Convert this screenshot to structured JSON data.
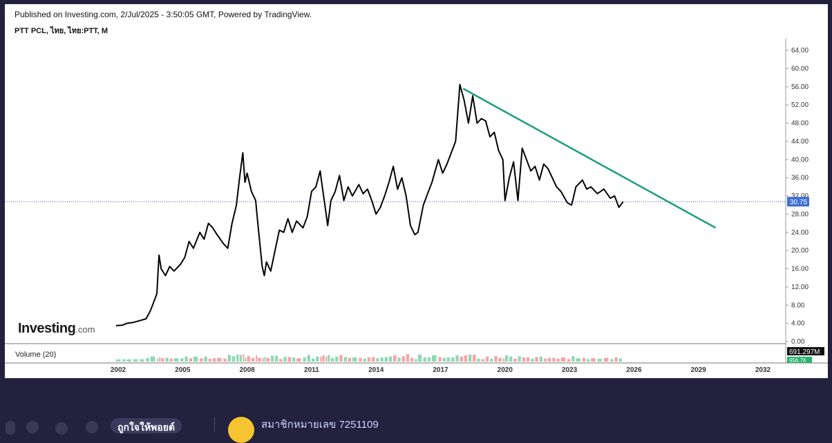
{
  "header": {
    "published": "Published on Investing.com, 2/Jul/2025 - 3:50:05 GMT, Powered by TradingView.",
    "symbol": "PTT PCL, ไทย, ไทย:PTT, M"
  },
  "logo": {
    "brand": "Investing",
    "suffix": ".com"
  },
  "volume": {
    "label": "Volume (20)",
    "value_label": "691.297M",
    "ma_label": "956.7K"
  },
  "price_label": "30.75",
  "footer": {
    "like_label": "ถูกใจให้พอยต์",
    "member_name": "สมาชิกหมายเลข 7251109"
  },
  "colors": {
    "price_line": "#000000",
    "trend_line": "#1a9e80",
    "price_badge": "#3f6fd3",
    "vol_up": "#8fd8b4",
    "vol_down": "#f4a3a3"
  },
  "chart_data": {
    "type": "line",
    "x_ticks": [
      "2002",
      "2005",
      "2008",
      "2011",
      "2014",
      "2017",
      "2020",
      "2023",
      "2026",
      "2029",
      "2032"
    ],
    "y_ticks": [
      "0.00",
      "4.00",
      "8.00",
      "12.00",
      "16.00",
      "20.00",
      "24.00",
      "28.00",
      "32.00",
      "36.00",
      "40.00",
      "44.00",
      "48.00",
      "52.00",
      "56.00",
      "60.00",
      "64.00"
    ],
    "ylim": [
      0,
      66
    ],
    "xlim": [
      2002,
      2032
    ],
    "current_price": 30.75,
    "series": [
      {
        "values": [
          [
            2001.9,
            3.5
          ],
          [
            2002.2,
            3.6
          ],
          [
            2002.4,
            4.0
          ],
          [
            2002.7,
            4.2
          ],
          [
            2003.0,
            4.6
          ],
          [
            2003.3,
            5.0
          ],
          [
            2003.5,
            6.8
          ],
          [
            2003.8,
            10.5
          ],
          [
            2003.9,
            19.0
          ],
          [
            2004.0,
            16.0
          ],
          [
            2004.2,
            14.5
          ],
          [
            2004.4,
            16.5
          ],
          [
            2004.6,
            15.5
          ],
          [
            2004.9,
            17.0
          ],
          [
            2005.1,
            18.5
          ],
          [
            2005.3,
            22.0
          ],
          [
            2005.5,
            20.5
          ],
          [
            2005.8,
            24.0
          ],
          [
            2006.0,
            22.5
          ],
          [
            2006.2,
            26.0
          ],
          [
            2006.4,
            25.0
          ],
          [
            2006.6,
            23.5
          ],
          [
            2006.9,
            21.5
          ],
          [
            2007.1,
            20.5
          ],
          [
            2007.3,
            26.0
          ],
          [
            2007.5,
            30.0
          ],
          [
            2007.65,
            36.0
          ],
          [
            2007.8,
            41.5
          ],
          [
            2007.9,
            35.0
          ],
          [
            2008.0,
            37.0
          ],
          [
            2008.2,
            33.0
          ],
          [
            2008.4,
            31.0
          ],
          [
            2008.5,
            26.0
          ],
          [
            2008.7,
            16.5
          ],
          [
            2008.8,
            14.5
          ],
          [
            2008.9,
            17.5
          ],
          [
            2009.1,
            15.5
          ],
          [
            2009.3,
            20.0
          ],
          [
            2009.5,
            24.5
          ],
          [
            2009.7,
            24.0
          ],
          [
            2009.9,
            27.0
          ],
          [
            2010.1,
            24.0
          ],
          [
            2010.3,
            26.5
          ],
          [
            2010.6,
            25.0
          ],
          [
            2010.8,
            27.5
          ],
          [
            2011.0,
            33.0
          ],
          [
            2011.2,
            34.0
          ],
          [
            2011.4,
            37.5
          ],
          [
            2011.5,
            34.0
          ],
          [
            2011.65,
            29.0
          ],
          [
            2011.75,
            25.5
          ],
          [
            2011.9,
            31.0
          ],
          [
            2012.1,
            33.0
          ],
          [
            2012.3,
            36.5
          ],
          [
            2012.5,
            31.0
          ],
          [
            2012.7,
            34.0
          ],
          [
            2012.9,
            32.0
          ],
          [
            2013.2,
            34.5
          ],
          [
            2013.4,
            32.5
          ],
          [
            2013.6,
            33.5
          ],
          [
            2013.8,
            31.0
          ],
          [
            2014.0,
            28.0
          ],
          [
            2014.2,
            29.5
          ],
          [
            2014.4,
            32.0
          ],
          [
            2014.6,
            35.0
          ],
          [
            2014.8,
            38.5
          ],
          [
            2015.0,
            33.5
          ],
          [
            2015.2,
            36.0
          ],
          [
            2015.4,
            32.0
          ],
          [
            2015.6,
            25.5
          ],
          [
            2015.8,
            23.5
          ],
          [
            2015.95,
            24.0
          ],
          [
            2016.2,
            30.0
          ],
          [
            2016.4,
            32.5
          ],
          [
            2016.6,
            35.0
          ],
          [
            2016.9,
            40.0
          ],
          [
            2017.1,
            37.0
          ],
          [
            2017.3,
            39.0
          ],
          [
            2017.5,
            41.5
          ],
          [
            2017.7,
            44.0
          ],
          [
            2017.9,
            56.5
          ],
          [
            2018.1,
            53.0
          ],
          [
            2018.3,
            48.0
          ],
          [
            2018.5,
            54.0
          ],
          [
            2018.7,
            48.0
          ],
          [
            2018.9,
            49.0
          ],
          [
            2019.1,
            48.5
          ],
          [
            2019.3,
            45.0
          ],
          [
            2019.5,
            46.0
          ],
          [
            2019.7,
            42.0
          ],
          [
            2019.9,
            40.0
          ],
          [
            2020.0,
            31.0
          ],
          [
            2020.2,
            36.0
          ],
          [
            2020.4,
            39.5
          ],
          [
            2020.6,
            31.0
          ],
          [
            2020.8,
            42.5
          ],
          [
            2021.0,
            40.0
          ],
          [
            2021.2,
            37.5
          ],
          [
            2021.4,
            38.5
          ],
          [
            2021.6,
            35.5
          ],
          [
            2021.8,
            39.0
          ],
          [
            2022.0,
            38.0
          ],
          [
            2022.2,
            36.0
          ],
          [
            2022.4,
            34.0
          ],
          [
            2022.6,
            33.0
          ],
          [
            2022.9,
            30.5
          ],
          [
            2023.1,
            30.0
          ],
          [
            2023.3,
            34.0
          ],
          [
            2023.6,
            35.5
          ],
          [
            2023.8,
            33.5
          ],
          [
            2024.0,
            34.0
          ],
          [
            2024.3,
            32.5
          ],
          [
            2024.6,
            33.5
          ],
          [
            2024.9,
            31.5
          ],
          [
            2025.1,
            32.0
          ],
          [
            2025.3,
            29.5
          ],
          [
            2025.5,
            30.75
          ]
        ]
      }
    ],
    "trendline": {
      "x": [
        2018.05,
        2029.8
      ],
      "y": [
        55.6,
        25.0
      ]
    }
  }
}
